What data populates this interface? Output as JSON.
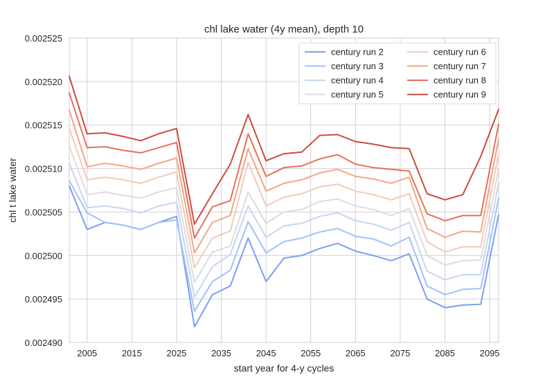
{
  "chart_data": {
    "type": "line",
    "title": "chl lake water (4y mean), depth 10",
    "xlabel": "start year for 4-y cycles",
    "ylabel": "chl t lake water",
    "xlim": [
      2001,
      2097
    ],
    "ylim": [
      0.00249,
      0.002525
    ],
    "xticks": [
      2005,
      2015,
      2025,
      2035,
      2045,
      2055,
      2065,
      2075,
      2085,
      2095
    ],
    "yticks": [
      "0.002490",
      "0.002495",
      "0.002500",
      "0.002505",
      "0.002510",
      "0.002515",
      "0.002520",
      "0.002525"
    ],
    "grid": true,
    "legend_position": "top-right",
    "x": [
      2001,
      2005,
      2009,
      2013,
      2017,
      2021,
      2025,
      2029,
      2033,
      2037,
      2041,
      2045,
      2049,
      2053,
      2057,
      2061,
      2065,
      2069,
      2073,
      2077,
      2081,
      2085,
      2089,
      2093,
      2097
    ],
    "series": [
      {
        "name": "century run 2",
        "color": "#7b9ff2",
        "values": [
          0.002508,
          0.002503,
          0.0025038,
          0.0025035,
          0.002503,
          0.0025038,
          0.0025045,
          0.0024918,
          0.0024955,
          0.0024965,
          0.002502,
          0.002497,
          0.0024997,
          0.0025,
          0.0025008,
          0.0025014,
          0.0025005,
          0.0025,
          0.0024994,
          0.0025002,
          0.002495,
          0.002494,
          0.0024943,
          0.0024944,
          0.0025047
        ]
      },
      {
        "name": "century run 3",
        "color": "#a1c0fd",
        "values": [
          0.0025086,
          0.0025049,
          0.0025038,
          0.0025035,
          0.002503,
          0.0025038,
          0.0025041,
          0.0024936,
          0.002497,
          0.0024983,
          0.0025039,
          0.0025003,
          0.0025016,
          0.002502,
          0.0025027,
          0.0025031,
          0.0025022,
          0.0025019,
          0.0025011,
          0.0025021,
          0.0024965,
          0.0024955,
          0.0024961,
          0.0024962,
          0.0025066
        ]
      },
      {
        "name": "century run 4",
        "color": "#c6d6f0",
        "values": [
          0.0025106,
          0.0025055,
          0.0025057,
          0.0025054,
          0.0025049,
          0.0025057,
          0.0025061,
          0.0024952,
          0.0024987,
          0.0025001,
          0.0025057,
          0.0025021,
          0.0025034,
          0.0025037,
          0.0025045,
          0.0025049,
          0.002504,
          0.0025036,
          0.0025029,
          0.0025038,
          0.0024982,
          0.0024972,
          0.0024978,
          0.0024978,
          0.0025083
        ]
      },
      {
        "name": "century run 5",
        "color": "#dddddd",
        "values": [
          0.0025126,
          0.002507,
          0.0025073,
          0.0025069,
          0.0025066,
          0.0025073,
          0.0025078,
          0.0024969,
          0.0025004,
          0.0025011,
          0.0025073,
          0.0025037,
          0.002505,
          0.0025053,
          0.0025062,
          0.0025065,
          0.0025057,
          0.0025053,
          0.0025046,
          0.0025054,
          0.0025,
          0.0024989,
          0.0024994,
          0.0024995,
          0.0025099
        ]
      },
      {
        "name": "century run 6",
        "color": "#f2cbb7",
        "values": [
          0.0025146,
          0.0025087,
          0.002509,
          0.0025087,
          0.0025083,
          0.002509,
          0.0025096,
          0.0024986,
          0.002502,
          0.0025028,
          0.0025107,
          0.0025057,
          0.0025067,
          0.0025071,
          0.0025079,
          0.0025082,
          0.0025074,
          0.002507,
          0.0025064,
          0.0025071,
          0.0025016,
          0.0025004,
          0.002501,
          0.002501,
          0.0025117
        ]
      },
      {
        "name": "century run 7",
        "color": "#f5a486",
        "values": [
          0.0025167,
          0.0025102,
          0.0025106,
          0.0025103,
          0.0025099,
          0.0025106,
          0.0025112,
          0.0025003,
          0.0025038,
          0.0025046,
          0.0025123,
          0.0025074,
          0.0025083,
          0.0025087,
          0.0025095,
          0.0025099,
          0.0025091,
          0.0025088,
          0.0025083,
          0.002509,
          0.0025031,
          0.0025021,
          0.0025028,
          0.0025027,
          0.0025134
        ]
      },
      {
        "name": "century run 8",
        "color": "#e57058",
        "values": [
          0.0025187,
          0.0025124,
          0.0025125,
          0.0025121,
          0.0025118,
          0.0025124,
          0.002513,
          0.002502,
          0.0025056,
          0.0025063,
          0.002514,
          0.0025091,
          0.0025101,
          0.0025103,
          0.0025111,
          0.0025116,
          0.0025105,
          0.0025101,
          0.0025099,
          0.0025097,
          0.0025048,
          0.002504,
          0.0025046,
          0.0025046,
          0.0025151
        ]
      },
      {
        "name": "century run 9",
        "color": "#cc4a3d",
        "values": [
          0.0025206,
          0.002514,
          0.0025141,
          0.0025137,
          0.0025132,
          0.002514,
          0.0025146,
          0.0025036,
          0.0025071,
          0.0025105,
          0.0025162,
          0.0025109,
          0.0025117,
          0.0025119,
          0.0025138,
          0.0025139,
          0.0025131,
          0.0025128,
          0.0025124,
          0.0025123,
          0.0025071,
          0.0025064,
          0.002507,
          0.0025114,
          0.0025168
        ]
      }
    ]
  }
}
